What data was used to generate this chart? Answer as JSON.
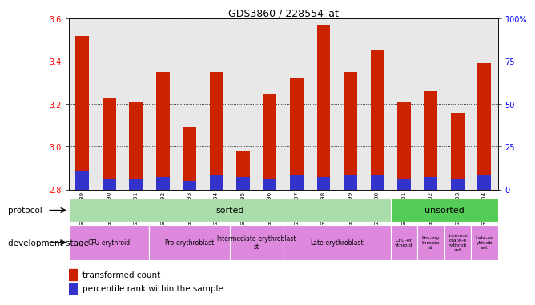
{
  "title": "GDS3860 / 228554_at",
  "samples": [
    "GSM559689",
    "GSM559690",
    "GSM559691",
    "GSM559692",
    "GSM559693",
    "GSM559694",
    "GSM559695",
    "GSM559696",
    "GSM559697",
    "GSM559698",
    "GSM559699",
    "GSM559700",
    "GSM559701",
    "GSM559702",
    "GSM559703",
    "GSM559704"
  ],
  "transformed_count": [
    3.52,
    3.23,
    3.21,
    3.35,
    3.09,
    3.35,
    2.98,
    3.25,
    3.32,
    3.57,
    3.35,
    3.45,
    3.21,
    3.26,
    3.16,
    3.39
  ],
  "percentile_values": [
    0.09,
    0.05,
    0.05,
    0.06,
    0.04,
    0.07,
    0.06,
    0.05,
    0.07,
    0.06,
    0.07,
    0.07,
    0.05,
    0.06,
    0.05,
    0.07
  ],
  "ymin": 2.8,
  "ymax": 3.6,
  "bar_color": "#cc2200",
  "blue_color": "#3333cc",
  "bg_color": "#e8e8e8",
  "protocol_sorted_color": "#aaddaa",
  "protocol_unsorted_color": "#55cc55",
  "dev_stage_color": "#dd88dd",
  "right_yticks": [
    0,
    25,
    50,
    75,
    100
  ],
  "right_yticklabels": [
    "0",
    "25",
    "50",
    "75",
    "100%"
  ],
  "sorted_count": 12,
  "dev_stages_sorted": [
    {
      "label": "CFU-erythroid",
      "start": 0,
      "end": 3
    },
    {
      "label": "Pro-erythroblast",
      "start": 3,
      "end": 6
    },
    {
      "label": "Intermediate-erythroblast\nst",
      "start": 6,
      "end": 8
    },
    {
      "label": "Late-erythroblast",
      "start": 8,
      "end": 12
    }
  ],
  "dev_stages_unsorted": [
    {
      "label": "CFU-er\nythroid",
      "start": 12,
      "end": 13
    },
    {
      "label": "Pro-ery\nthrobla\nst",
      "start": 13,
      "end": 14
    },
    {
      "label": "Interme\ndiate-e\nrythrob\nast",
      "start": 14,
      "end": 15
    },
    {
      "label": "Late-er\nythrob\nast",
      "start": 15,
      "end": 16
    }
  ]
}
